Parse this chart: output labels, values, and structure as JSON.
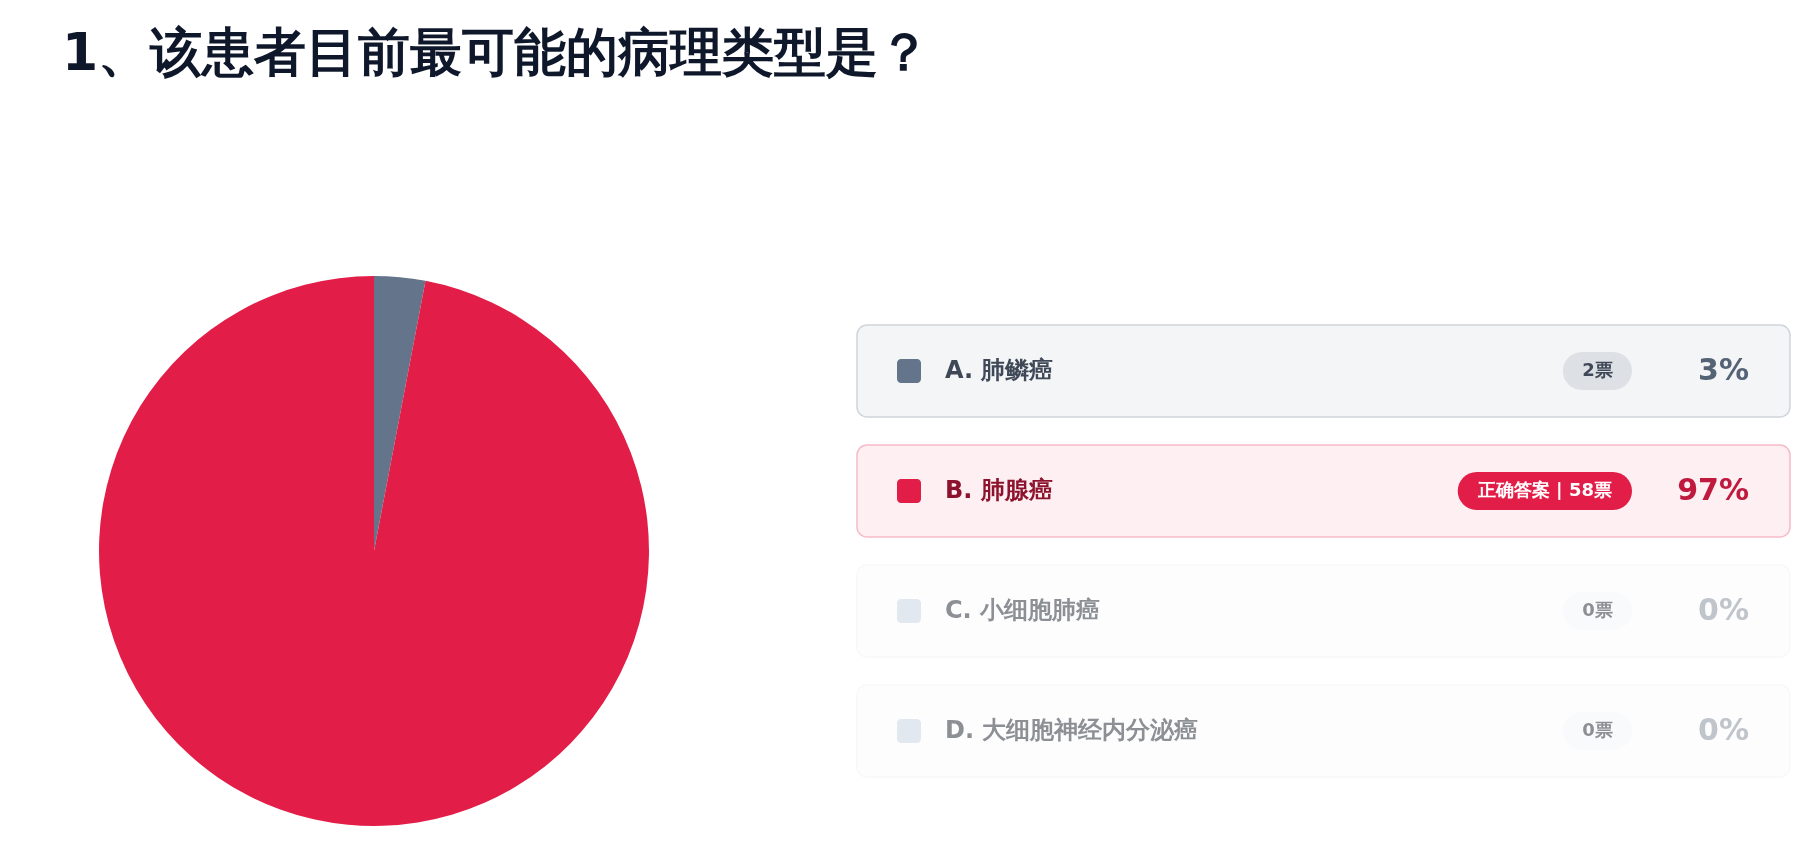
{
  "chart_data": {
    "type": "pie",
    "title": "1、该患者目前最可能的病理类型是？",
    "categories": [
      "A. 肺鳞癌",
      "B. 肺腺癌",
      "C. 小细胞肺癌",
      "D. 大细胞神经内分泌癌"
    ],
    "values": [
      3,
      97,
      0,
      0
    ],
    "colors": [
      "#64748b",
      "#e11d48",
      "#e2e8f0",
      "#e2e8f0"
    ],
    "value_labels": [
      "3%",
      "97%",
      "0%",
      "0%"
    ],
    "annotations": [
      "2票",
      "正确答案 | 58票",
      "0票",
      "0票"
    ],
    "legend": "right"
  }
}
